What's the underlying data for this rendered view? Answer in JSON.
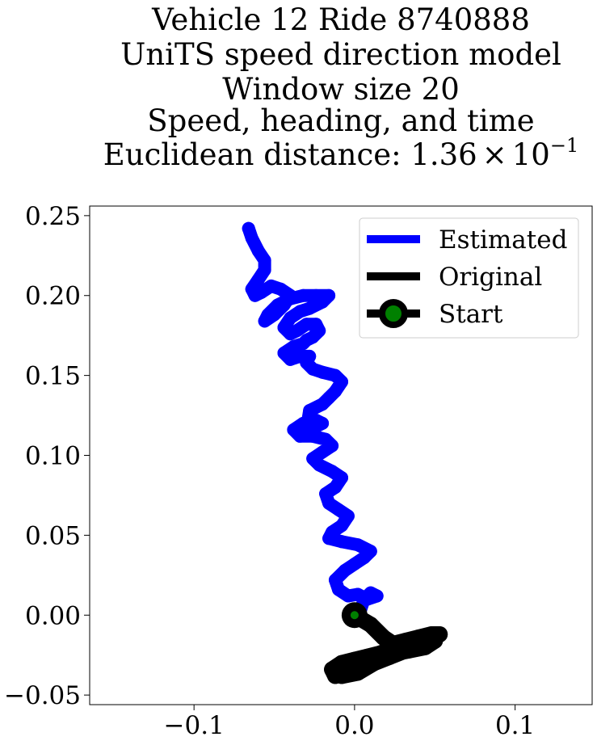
{
  "chart_data": {
    "type": "line",
    "title_lines": [
      "Vehicle 12 Ride 8740888",
      "UniTS speed direction model",
      "Window size 20",
      "Speed, heading, and time"
    ],
    "title_last_line": {
      "prefix": "Euclidean distance: ",
      "mantissa": "1.36",
      "times": "×",
      "base": "10",
      "exponent": "−1"
    },
    "xlabel": "",
    "ylabel": "",
    "xlim": [
      -0.165,
      0.148
    ],
    "ylim": [
      -0.056,
      0.256
    ],
    "x_ticks": [
      {
        "value": -0.1,
        "label": "−0.1"
      },
      {
        "value": 0.0,
        "label": "0.0"
      },
      {
        "value": 0.1,
        "label": "0.1"
      }
    ],
    "y_ticks": [
      {
        "value": 0.25,
        "label": "0.25"
      },
      {
        "value": 0.2,
        "label": "0.20"
      },
      {
        "value": 0.15,
        "label": "0.15"
      },
      {
        "value": 0.1,
        "label": "0.10"
      },
      {
        "value": 0.05,
        "label": "0.05"
      },
      {
        "value": 0.0,
        "label": "0.00"
      },
      {
        "value": -0.05,
        "label": "−0.05"
      }
    ],
    "grid": false,
    "legend_position": "top-right",
    "series": [
      {
        "name": "Estimated",
        "color": "#0000ff",
        "x": [
          0.0,
          0.004,
          0.006,
          0.01,
          0.014,
          0.008,
          0.002,
          -0.004,
          -0.01,
          -0.012,
          -0.006,
          0.0,
          0.006,
          0.01,
          0.002,
          -0.008,
          -0.016,
          -0.014,
          -0.008,
          -0.004,
          -0.01,
          -0.016,
          -0.018,
          -0.012,
          -0.008,
          -0.014,
          -0.022,
          -0.026,
          -0.02,
          -0.014,
          -0.018,
          -0.026,
          -0.034,
          -0.038,
          -0.032,
          -0.024,
          -0.02,
          -0.024,
          -0.03,
          -0.028,
          -0.02,
          -0.016,
          -0.012,
          -0.008,
          -0.012,
          -0.02,
          -0.026,
          -0.03,
          -0.028,
          -0.034,
          -0.04,
          -0.044,
          -0.038,
          -0.032,
          -0.03,
          -0.026,
          -0.022,
          -0.024,
          -0.03,
          -0.036,
          -0.04,
          -0.044,
          -0.04,
          -0.034,
          -0.028,
          -0.02,
          -0.016,
          -0.024,
          -0.032,
          -0.04,
          -0.048,
          -0.054,
          -0.056,
          -0.05,
          -0.044,
          -0.04,
          -0.046,
          -0.052,
          -0.058,
          -0.062,
          -0.064,
          -0.06,
          -0.056,
          -0.056,
          -0.06,
          -0.064,
          -0.066
        ],
        "y": [
          0.0,
          0.004,
          0.01,
          0.014,
          0.012,
          0.01,
          0.013,
          0.012,
          0.016,
          0.022,
          0.028,
          0.032,
          0.036,
          0.04,
          0.044,
          0.046,
          0.048,
          0.052,
          0.056,
          0.062,
          0.066,
          0.07,
          0.076,
          0.08,
          0.086,
          0.09,
          0.094,
          0.098,
          0.102,
          0.106,
          0.11,
          0.112,
          0.112,
          0.116,
          0.12,
          0.122,
          0.12,
          0.118,
          0.116,
          0.128,
          0.132,
          0.136,
          0.14,
          0.146,
          0.15,
          0.152,
          0.154,
          0.158,
          0.162,
          0.162,
          0.16,
          0.164,
          0.168,
          0.17,
          0.172,
          0.174,
          0.178,
          0.182,
          0.182,
          0.178,
          0.176,
          0.18,
          0.186,
          0.19,
          0.192,
          0.196,
          0.2,
          0.2,
          0.2,
          0.198,
          0.194,
          0.188,
          0.184,
          0.188,
          0.194,
          0.2,
          0.204,
          0.206,
          0.202,
          0.2,
          0.204,
          0.21,
          0.216,
          0.222,
          0.228,
          0.236,
          0.242
        ]
      },
      {
        "name": "Original",
        "color": "#000000",
        "x": [
          0.0,
          0.01,
          0.018,
          0.024,
          0.032,
          0.04,
          0.048,
          0.053,
          0.046,
          0.036,
          0.026,
          0.016,
          0.008,
          0.0,
          -0.008,
          -0.014,
          -0.012,
          -0.004,
          0.006,
          0.016,
          0.026,
          0.036,
          0.044,
          0.05,
          0.044,
          0.034,
          0.024,
          0.014,
          0.004,
          -0.006,
          -0.012,
          -0.008,
          0.002,
          0.012,
          0.022,
          0.032,
          0.042,
          0.05
        ],
        "y": [
          0.0,
          -0.006,
          -0.014,
          -0.018,
          -0.016,
          -0.014,
          -0.012,
          -0.012,
          -0.016,
          -0.018,
          -0.02,
          -0.024,
          -0.026,
          -0.028,
          -0.03,
          -0.034,
          -0.038,
          -0.036,
          -0.032,
          -0.028,
          -0.024,
          -0.02,
          -0.018,
          -0.016,
          -0.02,
          -0.022,
          -0.024,
          -0.028,
          -0.03,
          -0.032,
          -0.034,
          -0.038,
          -0.036,
          -0.03,
          -0.026,
          -0.022,
          -0.018,
          -0.014
        ]
      },
      {
        "name": "Start",
        "color": "#000000",
        "face_color": "#008000",
        "x": [
          0.0
        ],
        "y": [
          0.0
        ]
      }
    ]
  }
}
